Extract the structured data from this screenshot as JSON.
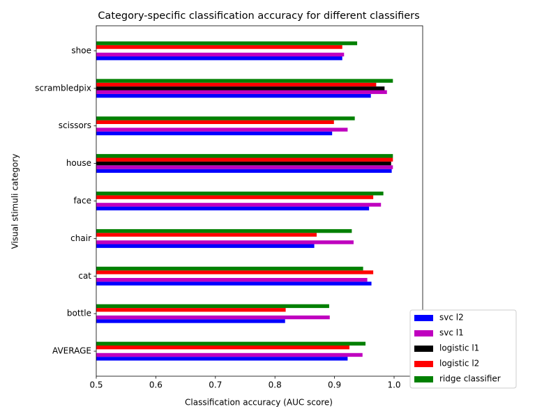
{
  "chart_data": {
    "type": "barh",
    "title": "Category-specific classification accuracy for different classifiers",
    "xlabel": "Classification accuracy (AUC score)",
    "ylabel": "Visual stimuli category",
    "categories": [
      "AVERAGE",
      "bottle",
      "cat",
      "chair",
      "face",
      "house",
      "scissors",
      "scrambledpix",
      "shoe"
    ],
    "series": [
      {
        "name": "svc l2",
        "color": "#0000ff",
        "values": [
          0.922,
          0.817,
          0.962,
          0.866,
          0.958,
          0.996,
          0.896,
          0.961,
          0.913
        ]
      },
      {
        "name": "svc l1",
        "color": "#bf00bf",
        "values": [
          0.947,
          0.892,
          0.955,
          0.932,
          0.978,
          0.998,
          0.922,
          0.988,
          0.916
        ]
      },
      {
        "name": "logistic l1",
        "color": "#000000",
        "values": [
          null,
          null,
          null,
          null,
          null,
          0.995,
          null,
          0.984,
          null
        ]
      },
      {
        "name": "logistic l2",
        "color": "#ff0000",
        "values": [
          0.925,
          0.818,
          0.965,
          0.87,
          0.965,
          0.998,
          0.899,
          0.97,
          0.913
        ]
      },
      {
        "name": "ridge classifier",
        "color": "#008000",
        "values": [
          0.952,
          0.891,
          0.948,
          0.929,
          0.982,
          0.998,
          0.934,
          0.998,
          0.938
        ]
      }
    ],
    "xlim": [
      0.5,
      1.048
    ],
    "xticks": [
      0.5,
      0.6,
      0.7,
      0.8,
      0.9,
      {
        "value": 1,
        "label": "1.0"
      }
    ],
    "legend": "lower right"
  }
}
